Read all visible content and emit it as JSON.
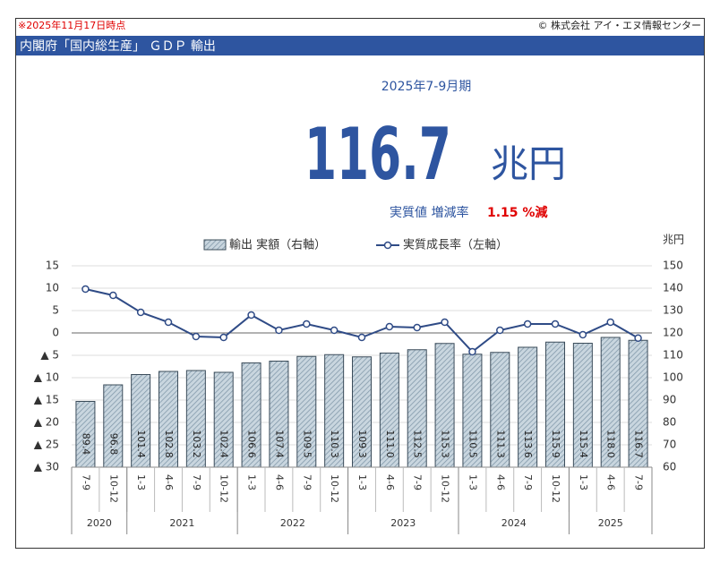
{
  "header": {
    "date": "※2025年11月17日時点",
    "copyright": "© 株式会社 アイ・エヌ情報センター",
    "title": "内閣府「国内総生産」 ＧＤＰ 輸出"
  },
  "headline": {
    "period": "2025年7-9月期",
    "value": "116.7",
    "unit": "兆円",
    "rate_label": "実質値 増減率",
    "rate": "1.15 %減"
  },
  "chart_data": {
    "type": "combo",
    "categories": [
      "7-9",
      "10-12",
      "1-3",
      "4-6",
      "7-9",
      "10-12",
      "1-3",
      "4-6",
      "7-9",
      "10-12",
      "1-3",
      "4-6",
      "7-9",
      "10-12",
      "1-3",
      "4-6",
      "7-9",
      "10-12",
      "1-3",
      "4-6",
      "7-9"
    ],
    "category_groups": [
      {
        "label": "2020",
        "size": 2
      },
      {
        "label": "2021",
        "size": 4
      },
      {
        "label": "2022",
        "size": 4
      },
      {
        "label": "2023",
        "size": 4
      },
      {
        "label": "2024",
        "size": 4
      },
      {
        "label": "2025",
        "size": 3
      }
    ],
    "series": [
      {
        "name": "輸出 実額（右軸）",
        "type": "bar",
        "axis": "y2",
        "color": "#a9bcc9",
        "values": [
          89.4,
          96.8,
          101.4,
          102.8,
          103.2,
          102.4,
          106.6,
          107.4,
          109.5,
          110.3,
          109.3,
          111.0,
          112.5,
          115.3,
          110.5,
          111.3,
          113.6,
          115.9,
          115.4,
          118.0,
          116.7
        ],
        "value_labels": [
          "89.4",
          "96.8",
          "101.4",
          "102.8",
          "103.2",
          "102.4",
          "106.6",
          "107.4",
          "109.5",
          "110.3",
          "109.3",
          "111.0",
          "112.5",
          "115.3",
          "110.5",
          "111.3",
          "113.6",
          "115.9",
          "115.4",
          "118.0",
          "116.7"
        ]
      },
      {
        "name": "実質成長率（左軸）",
        "type": "line",
        "color": "#2f4b86",
        "values": [
          9.8,
          8.4,
          4.6,
          2.4,
          -0.8,
          -1.0,
          4.0,
          0.6,
          2.0,
          0.6,
          -1.0,
          1.4,
          1.2,
          2.4,
          -4.2,
          0.6,
          2.0,
          2.0,
          -0.4,
          2.4,
          -1.15
        ]
      }
    ],
    "ylim": [
      -30,
      15
    ],
    "yticks": [
      15,
      10,
      5,
      0,
      {
        "value": -5,
        "label": "▲ 5"
      },
      {
        "value": -10,
        "label": "▲ 10"
      },
      {
        "value": -15,
        "label": "▲ 15"
      },
      {
        "value": -20,
        "label": "▲ 20"
      },
      {
        "value": -25,
        "label": "▲ 25"
      },
      {
        "value": -30,
        "label": "▲ 30"
      }
    ],
    "y2lim": [
      60,
      150
    ],
    "y2ticks": [
      150,
      140,
      130,
      120,
      110,
      100,
      90,
      80,
      70,
      60
    ],
    "y2label": "兆円",
    "grid": true
  }
}
